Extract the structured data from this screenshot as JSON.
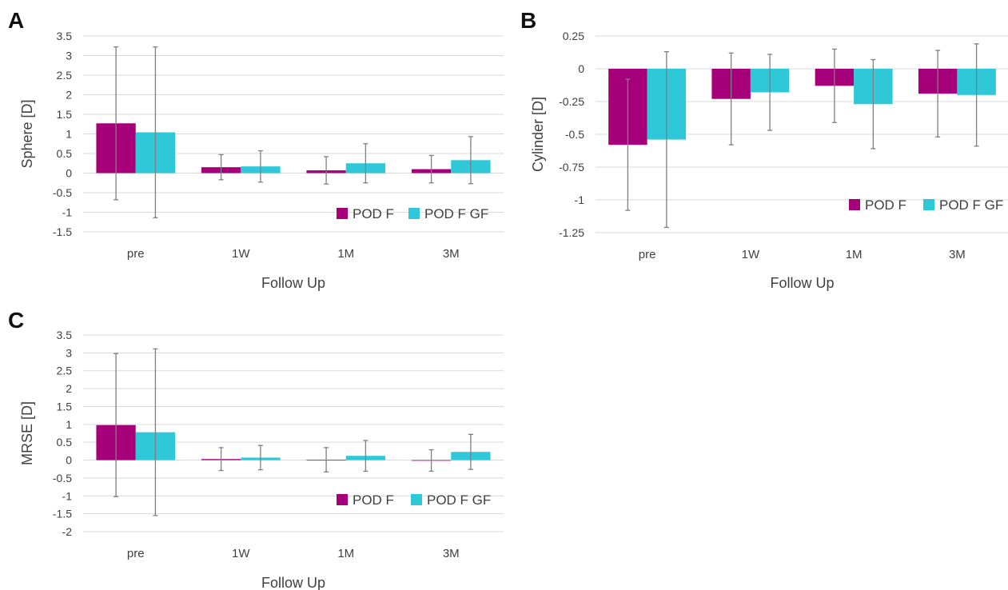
{
  "chart_data": [
    {
      "panel": "A",
      "type": "bar",
      "categories": [
        "pre",
        "1W",
        "1M",
        "3M"
      ],
      "xlabel": "Follow Up",
      "ylabel": "Sphere [D]",
      "ylim": [
        -1.5,
        3.5
      ],
      "yticks": [
        "3.5",
        "3",
        "2.5",
        "2",
        "1.5",
        "1",
        "0.5",
        "0",
        "-0.5",
        "-1",
        "-1.5"
      ],
      "grid": true,
      "legend_position": "bottom-right",
      "series": [
        {
          "name": "POD F",
          "color": "#a5007a",
          "values": [
            1.27,
            0.15,
            0.07,
            0.1
          ],
          "error": [
            1.95,
            0.32,
            0.35,
            0.35
          ]
        },
        {
          "name": "POD F GF",
          "color": "#2ec8d8",
          "values": [
            1.04,
            0.17,
            0.25,
            0.33
          ],
          "error": [
            2.18,
            0.4,
            0.5,
            0.6
          ]
        }
      ]
    },
    {
      "panel": "B",
      "type": "bar",
      "categories": [
        "pre",
        "1W",
        "1M",
        "3M"
      ],
      "xlabel": "Follow Up",
      "ylabel": "Cylinder [D]",
      "ylim": [
        -1.25,
        0.25
      ],
      "yticks": [
        "0.25",
        "0",
        "-0.25",
        "-0.5",
        "-0.75",
        "-1",
        "-1.25"
      ],
      "grid": true,
      "legend_position": "bottom-right",
      "series": [
        {
          "name": "POD F",
          "color": "#a5007a",
          "values": [
            -0.58,
            -0.23,
            -0.13,
            -0.19
          ],
          "error": [
            0.5,
            0.35,
            0.28,
            0.33
          ]
        },
        {
          "name": "POD F GF",
          "color": "#2ec8d8",
          "values": [
            -0.54,
            -0.18,
            -0.27,
            -0.2
          ],
          "error": [
            0.67,
            0.29,
            0.34,
            0.39
          ]
        }
      ]
    },
    {
      "panel": "C",
      "type": "bar",
      "categories": [
        "pre",
        "1W",
        "1M",
        "3M"
      ],
      "xlabel": "Follow Up",
      "ylabel": "MRSE [D]",
      "ylim": [
        -2,
        3.5
      ],
      "yticks": [
        "3.5",
        "3",
        "2.5",
        "2",
        "1.5",
        "1",
        "0.5",
        "0",
        "-0.5",
        "-1",
        "-1.5",
        "-2"
      ],
      "grid": true,
      "legend_position": "bottom-right",
      "series": [
        {
          "name": "POD F",
          "color": "#a5007a",
          "values": [
            0.98,
            0.03,
            0.01,
            -0.01
          ],
          "error": [
            2.0,
            0.32,
            0.34,
            0.3
          ]
        },
        {
          "name": "POD F GF",
          "color": "#2ec8d8",
          "values": [
            0.78,
            0.07,
            0.12,
            0.23
          ],
          "error": [
            2.33,
            0.34,
            0.43,
            0.49
          ]
        }
      ]
    }
  ]
}
